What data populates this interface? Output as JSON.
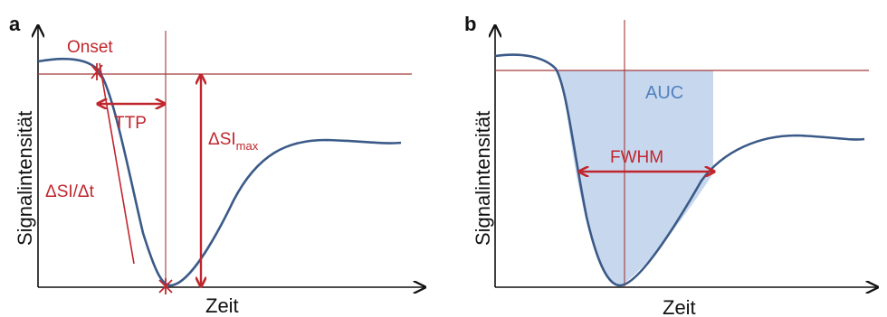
{
  "colors": {
    "curve": "#3b5a88",
    "red": "#c0262d",
    "dark_red": "#a33a3a",
    "auc_fill": "#c7d8ee",
    "auc_text": "#4f81bd",
    "axis": "#111111"
  },
  "panel_a": {
    "letter": "a",
    "y_label": "Signalintensität",
    "x_label": "Zeit",
    "onset_label": "Onset",
    "ttp_label": "TTP",
    "slope_label": "ΔSI/Δt",
    "dsi_max_label": "ΔSI",
    "dsi_max_subscript": "max"
  },
  "panel_b": {
    "letter": "b",
    "y_label": "Signalintensität",
    "x_label": "Zeit",
    "auc_label": "AUC",
    "fwhm_label": "FWHM"
  }
}
